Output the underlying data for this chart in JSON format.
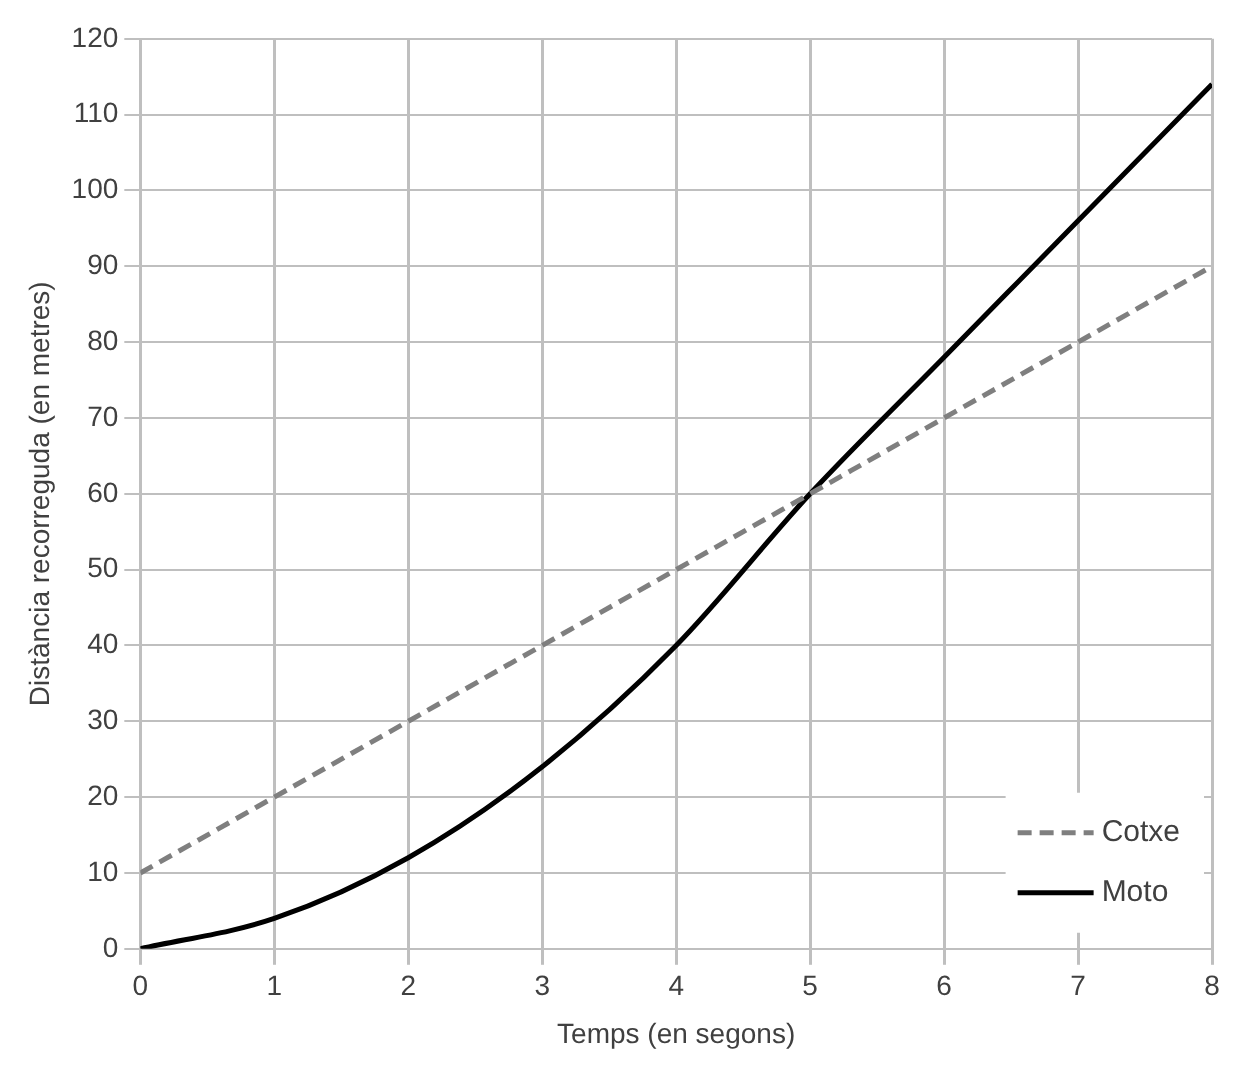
{
  "chart_data": {
    "type": "line",
    "xlabel": "Temps (en segons)",
    "ylabel": "Distància recorreguda (en metres)",
    "xlim": [
      0,
      8
    ],
    "xticks": [
      0,
      1,
      2,
      3,
      4,
      5,
      6,
      7,
      8
    ],
    "ylim": [
      0,
      120
    ],
    "yticks": [
      0,
      10,
      20,
      30,
      40,
      50,
      60,
      70,
      80,
      90,
      100,
      110,
      120
    ],
    "grid": true,
    "legend": "bottom right",
    "marker": "none",
    "x": [
      0,
      1,
      2,
      3,
      4,
      5,
      6,
      7,
      8
    ],
    "series": [
      {
        "name": "Cotxe",
        "color": "#7f7f7f",
        "line_style": "dashed",
        "values": [
          10,
          20,
          30,
          40,
          50,
          60,
          70,
          80,
          90
        ]
      },
      {
        "name": "Moto",
        "color": "#000000",
        "line_style": "solid",
        "values": [
          0,
          4,
          12,
          24,
          40,
          60,
          78,
          96,
          114
        ]
      }
    ]
  }
}
